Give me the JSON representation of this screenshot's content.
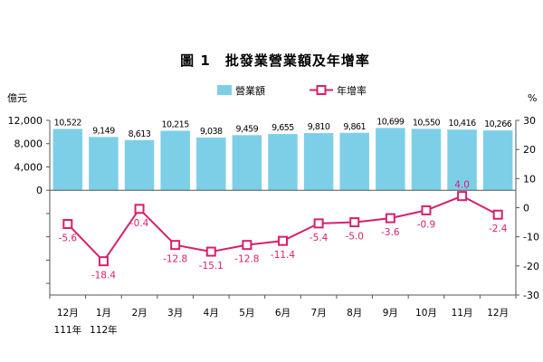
{
  "chart_data": {
    "type": "bar",
    "title": "圖 1　批發業營業額及年增率",
    "categories": [
      "12月",
      "1月",
      "2月",
      "3月",
      "4月",
      "5月",
      "6月",
      "7月",
      "8月",
      "9月",
      "10月",
      "11月",
      "12月"
    ],
    "category_sublabels": [
      "111年",
      "112年",
      "",
      "",
      "",
      "",
      "",
      "",
      "",
      "",
      "",
      "",
      ""
    ],
    "left_axis": {
      "unit": "億元",
      "ticks": [
        0,
        4000,
        8000,
        12000
      ],
      "tick_labels": [
        "0",
        "4,000",
        "8,000",
        "12,000"
      ],
      "ylim": [
        -18000,
        12000
      ]
    },
    "right_axis": {
      "unit": "%",
      "ticks": [
        -30,
        -20,
        -10,
        0,
        10,
        20,
        30
      ],
      "tick_labels": [
        "-30",
        "-20",
        "-10",
        "0",
        "10",
        "20",
        "30"
      ],
      "ylim": [
        -30,
        30
      ]
    },
    "series": [
      {
        "name": "營業額",
        "type": "bar",
        "axis": "left",
        "color": "#7dcfe8",
        "values": [
          10522,
          9149,
          8613,
          10215,
          9038,
          9459,
          9655,
          9810,
          9861,
          10699,
          10550,
          10416,
          10266
        ],
        "labels": [
          "10,522",
          "9,149",
          "8,613",
          "10,215",
          "9,038",
          "9,459",
          "9,655",
          "9,810",
          "9,861",
          "10,699",
          "10,550",
          "10,416",
          "10,266"
        ]
      },
      {
        "name": "年增率",
        "type": "line",
        "axis": "right",
        "color": "#d6206f",
        "values": [
          -5.6,
          -18.4,
          -0.4,
          -12.8,
          -15.1,
          -12.8,
          -11.4,
          -5.4,
          -5.0,
          -3.6,
          -0.9,
          4.0,
          -2.4
        ],
        "labels": [
          "-5.6",
          "-18.4",
          "-0.4",
          "-12.8",
          "-15.1",
          "-12.8",
          "-11.4",
          "-5.4",
          "-5.0",
          "-3.6",
          "-0.9",
          "4.0",
          "-2.4"
        ]
      }
    ],
    "legend_position": "top-center",
    "grid": false
  }
}
